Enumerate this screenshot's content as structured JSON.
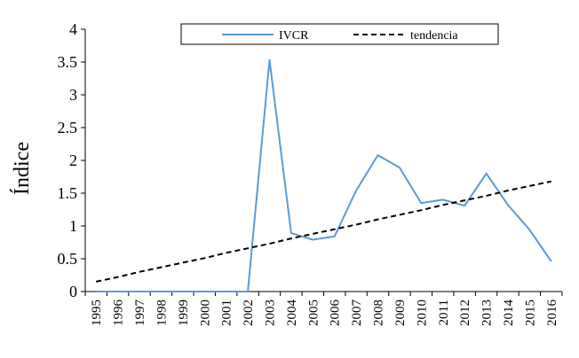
{
  "chart_data": {
    "type": "line",
    "title": "",
    "xlabel": "",
    "ylabel": "Índice",
    "ylim": [
      0,
      4
    ],
    "yticks": [
      "0",
      "0.5",
      "1",
      "1.5",
      "2",
      "2.5",
      "3",
      "3.5",
      "4"
    ],
    "x": [
      "1995",
      "1996",
      "1997",
      "1998",
      "1999",
      "2000",
      "2001",
      "2002",
      "2003",
      "2004",
      "2005",
      "2006",
      "2007",
      "2008",
      "2009",
      "2010",
      "2011",
      "2012",
      "2013",
      "2014",
      "2015",
      "2016"
    ],
    "series": [
      {
        "name": "IVCR",
        "color": "#5B9BD5",
        "style": "solid",
        "values": [
          0,
          0,
          0,
          0,
          0,
          0,
          0,
          0,
          3.53,
          0.89,
          0.79,
          0.84,
          1.54,
          2.08,
          1.89,
          1.35,
          1.4,
          1.31,
          1.8,
          1.32,
          0.94,
          0.46
        ]
      },
      {
        "name": "tendencia",
        "color": "#000000",
        "style": "dashed",
        "values": [
          0.15,
          0.22,
          0.3,
          0.37,
          0.44,
          0.51,
          0.59,
          0.66,
          0.73,
          0.81,
          0.88,
          0.95,
          1.02,
          1.1,
          1.17,
          1.24,
          1.32,
          1.39,
          1.46,
          1.54,
          1.61,
          1.68
        ]
      }
    ],
    "grid": false,
    "legend_position": "top-center"
  }
}
